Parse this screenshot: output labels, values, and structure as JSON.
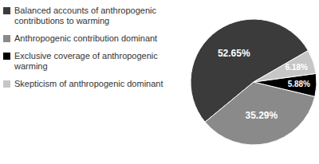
{
  "chart_data": {
    "type": "pie",
    "categories": [
      "Balanced accounts of anthropogenic contributions to warming",
      "Anthropogenic contribution dominant",
      "Exclusive coverage of anthropogenic warming",
      "Skepticism of anthropogenic dominant"
    ],
    "values": [
      52.65,
      35.29,
      5.88,
      6.18
    ],
    "value_labels": [
      "52.65%",
      "35.29%",
      "5.88%",
      "6.18%"
    ],
    "colors": [
      "#3b3b3b",
      "#8a8a8a",
      "#000000",
      "#c6c6c6"
    ],
    "data_labels": true,
    "legend": "left"
  }
}
